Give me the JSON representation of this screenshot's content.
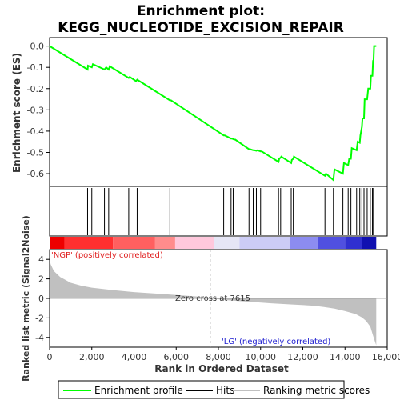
{
  "chart_data": {
    "type": "line",
    "title_line1": "Enrichment plot:",
    "title_line2": "KEGG_NUCLEOTIDE_EXCISION_REPAIR",
    "top_panel": {
      "ylabel": "Enrichment score (ES)",
      "ylim": [
        -0.66,
        0.04
      ],
      "yticks": [
        "0.0",
        "-0.1",
        "-0.2",
        "-0.3",
        "-0.4",
        "-0.5",
        "-0.6"
      ],
      "grid": false,
      "series": [
        {
          "name": "Enrichment profile",
          "color": "#00ff00",
          "x": [
            0,
            1800,
            1820,
            2000,
            2050,
            2600,
            2680,
            2800,
            2850,
            3750,
            3800,
            4100,
            4150,
            5700,
            5750,
            8250,
            8300,
            8600,
            8650,
            8750,
            8800,
            9450,
            9500,
            9650,
            9700,
            9800,
            9850,
            10000,
            10050,
            10850,
            10880,
            10950,
            10980,
            11450,
            11480,
            11550,
            11580,
            13050,
            13100,
            13450,
            13500,
            13900,
            13950,
            14150,
            14200,
            14280,
            14320,
            14550,
            14600,
            14700,
            14730,
            14800,
            14830,
            14900,
            14930,
            15050,
            15100,
            15200,
            15230,
            15300,
            15330,
            15350,
            15380,
            15480
          ],
          "y": [
            0.0,
            -0.11,
            -0.092,
            -0.1,
            -0.085,
            -0.11,
            -0.1,
            -0.11,
            -0.095,
            -0.15,
            -0.145,
            -0.165,
            -0.158,
            -0.255,
            -0.255,
            -0.42,
            -0.42,
            -0.435,
            -0.435,
            -0.44,
            -0.44,
            -0.485,
            -0.485,
            -0.49,
            -0.49,
            -0.492,
            -0.49,
            -0.495,
            -0.495,
            -0.545,
            -0.53,
            -0.525,
            -0.52,
            -0.55,
            -0.535,
            -0.53,
            -0.52,
            -0.61,
            -0.6,
            -0.63,
            -0.58,
            -0.6,
            -0.55,
            -0.56,
            -0.53,
            -0.53,
            -0.48,
            -0.49,
            -0.45,
            -0.455,
            -0.42,
            -0.38,
            -0.34,
            -0.34,
            -0.25,
            -0.25,
            -0.2,
            -0.2,
            -0.14,
            -0.14,
            -0.07,
            -0.07,
            0.0,
            0.0
          ]
        }
      ]
    },
    "hits": [
      1800,
      2000,
      2600,
      2800,
      3750,
      4150,
      5700,
      8250,
      8600,
      8700,
      9450,
      9650,
      9800,
      10000,
      10850,
      10950,
      11450,
      11550,
      13050,
      13450,
      13900,
      14150,
      14280,
      14550,
      14700,
      14800,
      14900,
      15050,
      15200,
      15300,
      15350
    ],
    "color_bar": {
      "segments": [
        {
          "from": 0,
          "to": 700,
          "color": "#ee0000"
        },
        {
          "from": 700,
          "to": 3000,
          "color": "#ff3030"
        },
        {
          "from": 3000,
          "to": 5000,
          "color": "#ff6060"
        },
        {
          "from": 5000,
          "to": 5950,
          "color": "#ff8c8c"
        },
        {
          "from": 5950,
          "to": 7800,
          "color": "#ffc8dc"
        },
        {
          "from": 7800,
          "to": 9000,
          "color": "#e6e6f5"
        },
        {
          "from": 9000,
          "to": 11400,
          "color": "#ccccf5"
        },
        {
          "from": 11400,
          "to": 12700,
          "color": "#8c8cf0"
        },
        {
          "from": 12700,
          "to": 14000,
          "color": "#5050e0"
        },
        {
          "from": 14000,
          "to": 14800,
          "color": "#3030d0"
        },
        {
          "from": 14800,
          "to": 15480,
          "color": "#1010b0"
        }
      ]
    },
    "bottom_panel": {
      "ylabel": "Ranked list metric (Signal2Noise)",
      "ylim": [
        -5,
        5
      ],
      "yticks": [
        "4",
        "2",
        "0",
        "-2",
        "-4"
      ],
      "fill_color": "#c0c0c0",
      "x": [
        0,
        50,
        200,
        500,
        1000,
        1500,
        2000,
        3000,
        4000,
        5000,
        6000,
        7000,
        7615,
        8500,
        9500,
        10500,
        11500,
        12500,
        13000,
        13500,
        14000,
        14500,
        14800,
        15000,
        15200,
        15300,
        15400,
        15480
      ],
      "y": [
        4.0,
        3.5,
        2.8,
        2.2,
        1.6,
        1.3,
        1.1,
        0.85,
        0.65,
        0.5,
        0.35,
        0.2,
        0.0,
        -0.2,
        -0.35,
        -0.5,
        -0.62,
        -0.75,
        -0.88,
        -1.05,
        -1.3,
        -1.6,
        -1.95,
        -2.3,
        -2.9,
        -3.6,
        -4.3,
        -4.8
      ],
      "annotations": {
        "positive": "'NGP' (positively correlated)",
        "negative": "'LG' (negatively correlated)",
        "zero_cross": "Zero cross at 7615"
      },
      "zero_cross_x": 7615
    },
    "x_axis": {
      "label": "Rank in Ordered Dataset",
      "xlim": [
        0,
        16000
      ],
      "ticks": [
        0,
        2000,
        4000,
        6000,
        8000,
        10000,
        12000,
        14000,
        16000
      ],
      "tick_labels": [
        "0",
        "2,000",
        "4,000",
        "6,000",
        "8,000",
        "10,000",
        "12,000",
        "14,000",
        "16,000"
      ]
    },
    "legend": {
      "items": [
        "Enrichment profile",
        "Hits",
        "Ranking metric scores"
      ],
      "colors": [
        "#00ff00",
        "#000000",
        "#c0c0c0"
      ],
      "placement": "bottom"
    }
  }
}
